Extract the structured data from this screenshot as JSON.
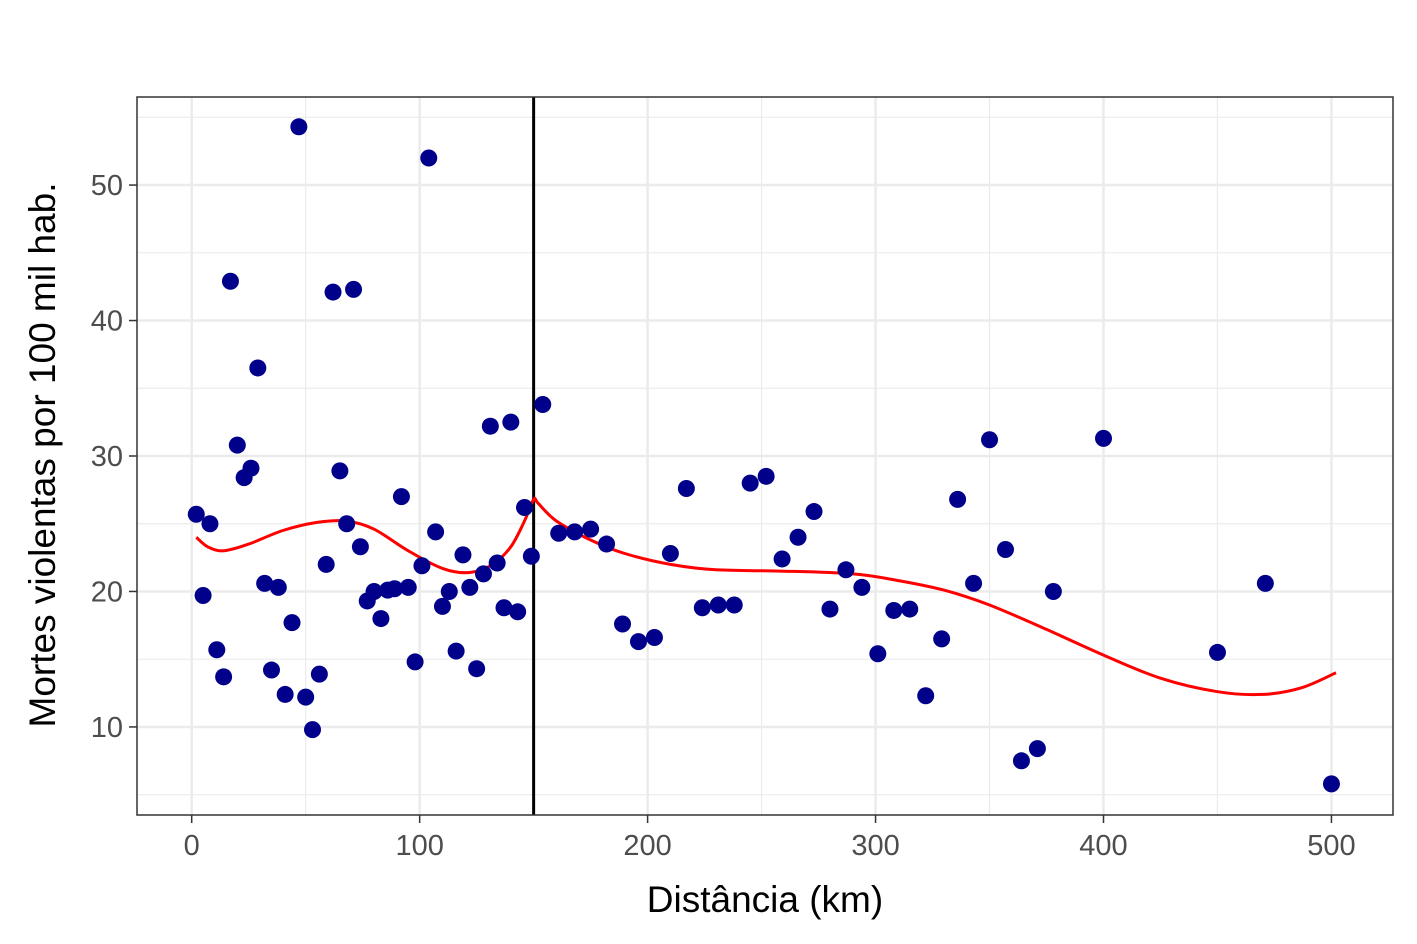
{
  "chart_data": {
    "type": "scatter",
    "title": "",
    "xlabel": "Distância (km)",
    "ylabel": "Mortes violentas por 100 mil hab.",
    "xlim": [
      -24,
      527
    ],
    "ylim": [
      3.5,
      56.5
    ],
    "x_ticks": [
      0,
      100,
      200,
      300,
      400,
      500
    ],
    "y_ticks": [
      10,
      20,
      30,
      40,
      50
    ],
    "grid": true,
    "legend": "none",
    "cutoff_x": 150,
    "point_color": "#00008B",
    "smooth_color": "#FF0000",
    "points": [
      {
        "x": 2,
        "y": 25.7
      },
      {
        "x": 5,
        "y": 19.7
      },
      {
        "x": 8,
        "y": 25.0
      },
      {
        "x": 11,
        "y": 15.7
      },
      {
        "x": 14,
        "y": 13.7
      },
      {
        "x": 17,
        "y": 42.9
      },
      {
        "x": 20,
        "y": 30.8
      },
      {
        "x": 23,
        "y": 28.4
      },
      {
        "x": 26,
        "y": 29.1
      },
      {
        "x": 29,
        "y": 36.5
      },
      {
        "x": 32,
        "y": 20.6
      },
      {
        "x": 35,
        "y": 14.2
      },
      {
        "x": 38,
        "y": 20.3
      },
      {
        "x": 41,
        "y": 12.4
      },
      {
        "x": 44,
        "y": 17.7
      },
      {
        "x": 47,
        "y": 54.3
      },
      {
        "x": 50,
        "y": 12.2
      },
      {
        "x": 53,
        "y": 9.8
      },
      {
        "x": 56,
        "y": 13.9
      },
      {
        "x": 59,
        "y": 22.0
      },
      {
        "x": 62,
        "y": 42.1
      },
      {
        "x": 65,
        "y": 28.9
      },
      {
        "x": 68,
        "y": 25.0
      },
      {
        "x": 71,
        "y": 42.3
      },
      {
        "x": 74,
        "y": 23.3
      },
      {
        "x": 77,
        "y": 19.3
      },
      {
        "x": 80,
        "y": 20.0
      },
      {
        "x": 83,
        "y": 18.0
      },
      {
        "x": 86,
        "y": 20.1
      },
      {
        "x": 89,
        "y": 20.2
      },
      {
        "x": 92,
        "y": 27.0
      },
      {
        "x": 95,
        "y": 20.3
      },
      {
        "x": 98,
        "y": 14.8
      },
      {
        "x": 101,
        "y": 21.9
      },
      {
        "x": 104,
        "y": 52.0
      },
      {
        "x": 107,
        "y": 24.4
      },
      {
        "x": 110,
        "y": 18.9
      },
      {
        "x": 113,
        "y": 20.0
      },
      {
        "x": 116,
        "y": 15.6
      },
      {
        "x": 119,
        "y": 22.7
      },
      {
        "x": 122,
        "y": 20.3
      },
      {
        "x": 125,
        "y": 14.3
      },
      {
        "x": 128,
        "y": 21.3
      },
      {
        "x": 131,
        "y": 32.2
      },
      {
        "x": 134,
        "y": 22.1
      },
      {
        "x": 137,
        "y": 18.8
      },
      {
        "x": 140,
        "y": 32.5
      },
      {
        "x": 143,
        "y": 18.5
      },
      {
        "x": 146,
        "y": 26.2
      },
      {
        "x": 149,
        "y": 22.6
      },
      {
        "x": 154,
        "y": 33.8
      },
      {
        "x": 161,
        "y": 24.3
      },
      {
        "x": 168,
        "y": 24.4
      },
      {
        "x": 175,
        "y": 24.6
      },
      {
        "x": 182,
        "y": 23.5
      },
      {
        "x": 189,
        "y": 17.6
      },
      {
        "x": 196,
        "y": 16.3
      },
      {
        "x": 203,
        "y": 16.6
      },
      {
        "x": 210,
        "y": 22.8
      },
      {
        "x": 217,
        "y": 27.6
      },
      {
        "x": 224,
        "y": 18.8
      },
      {
        "x": 231,
        "y": 19.0
      },
      {
        "x": 238,
        "y": 19.0
      },
      {
        "x": 245,
        "y": 28.0
      },
      {
        "x": 252,
        "y": 28.5
      },
      {
        "x": 259,
        "y": 22.4
      },
      {
        "x": 266,
        "y": 24.0
      },
      {
        "x": 273,
        "y": 25.9
      },
      {
        "x": 280,
        "y": 18.7
      },
      {
        "x": 287,
        "y": 21.6
      },
      {
        "x": 294,
        "y": 20.3
      },
      {
        "x": 301,
        "y": 15.4
      },
      {
        "x": 308,
        "y": 18.6
      },
      {
        "x": 315,
        "y": 18.7
      },
      {
        "x": 322,
        "y": 12.3
      },
      {
        "x": 329,
        "y": 16.5
      },
      {
        "x": 336,
        "y": 26.8
      },
      {
        "x": 343,
        "y": 20.6
      },
      {
        "x": 350,
        "y": 31.2
      },
      {
        "x": 357,
        "y": 23.1
      },
      {
        "x": 364,
        "y": 7.5
      },
      {
        "x": 371,
        "y": 8.4
      },
      {
        "x": 378,
        "y": 20.0
      },
      {
        "x": 400,
        "y": 31.3
      },
      {
        "x": 450,
        "y": 15.5
      },
      {
        "x": 471,
        "y": 20.6
      },
      {
        "x": 500,
        "y": 5.8
      }
    ],
    "smooth": [
      {
        "x": 2,
        "y": 24.0
      },
      {
        "x": 7,
        "y": 23.3
      },
      {
        "x": 14,
        "y": 23.0
      },
      {
        "x": 25,
        "y": 23.5
      },
      {
        "x": 40,
        "y": 24.5
      },
      {
        "x": 55,
        "y": 25.1
      },
      {
        "x": 68,
        "y": 25.2
      },
      {
        "x": 80,
        "y": 24.6
      },
      {
        "x": 95,
        "y": 23.0
      },
      {
        "x": 110,
        "y": 21.7
      },
      {
        "x": 122,
        "y": 21.4
      },
      {
        "x": 132,
        "y": 22.0
      },
      {
        "x": 140,
        "y": 23.3
      },
      {
        "x": 146,
        "y": 25.2
      },
      {
        "x": 150,
        "y": 26.8
      },
      {
        "x": 152,
        "y": 26.5
      },
      {
        "x": 160,
        "y": 25.2
      },
      {
        "x": 175,
        "y": 23.8
      },
      {
        "x": 190,
        "y": 22.8
      },
      {
        "x": 210,
        "y": 22.0
      },
      {
        "x": 230,
        "y": 21.6
      },
      {
        "x": 260,
        "y": 21.5
      },
      {
        "x": 290,
        "y": 21.3
      },
      {
        "x": 310,
        "y": 20.8
      },
      {
        "x": 330,
        "y": 20.1
      },
      {
        "x": 350,
        "y": 19.0
      },
      {
        "x": 375,
        "y": 17.2
      },
      {
        "x": 400,
        "y": 15.3
      },
      {
        "x": 425,
        "y": 13.6
      },
      {
        "x": 450,
        "y": 12.6
      },
      {
        "x": 470,
        "y": 12.4
      },
      {
        "x": 487,
        "y": 12.9
      },
      {
        "x": 502,
        "y": 14.0
      }
    ]
  }
}
